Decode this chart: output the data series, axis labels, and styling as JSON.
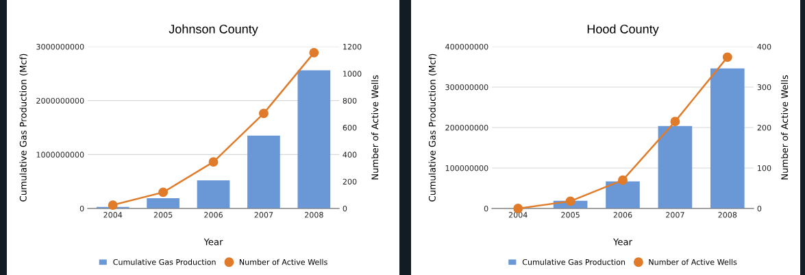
{
  "chart_data": [
    {
      "type": "bar",
      "title": "Johnson County",
      "xlabel": "Year",
      "ylabel": "Cumulative Gas Production (Mcf)",
      "y2label": "Number of Active Wells",
      "categories": [
        "2004",
        "2005",
        "2006",
        "2007",
        "2008"
      ],
      "series": [
        {
          "name": "Cumulative Gas Production",
          "color": "#6a98d6",
          "values": [
            30000000,
            190000000,
            520000000,
            1350000000,
            2560000000
          ]
        },
        {
          "name": "Number of Active Wells",
          "type": "line",
          "axis": "y2",
          "color": "#e07b2a",
          "marker": "circle",
          "values": [
            25,
            120,
            345,
            705,
            1155
          ]
        }
      ],
      "ylim": [
        0,
        3000000000
      ],
      "yticks": [
        0,
        1000000000,
        2000000000,
        3000000000
      ],
      "y2lim": [
        0,
        1200
      ],
      "y2ticks": [
        0,
        200,
        400,
        600,
        800,
        1000,
        1200
      ],
      "grid": "y",
      "legend": "bottom"
    },
    {
      "type": "bar",
      "title": "Hood County",
      "xlabel": "Year",
      "ylabel": "Cumulative Gas Production (Mcf)",
      "y2label": "Number of Active Wells",
      "categories": [
        "2004",
        "2005",
        "2006",
        "2007",
        "2008"
      ],
      "series": [
        {
          "name": "Cumulative Gas Production",
          "color": "#6a98d6",
          "values": [
            0,
            19000000,
            67000000,
            204000000,
            346000000
          ]
        },
        {
          "name": "Number of Active Wells",
          "type": "line",
          "axis": "y2",
          "color": "#e07b2a",
          "marker": "circle",
          "values": [
            0,
            18,
            70,
            215,
            374
          ]
        }
      ],
      "ylim": [
        0,
        400000000
      ],
      "yticks": [
        0,
        100000000,
        200000000,
        300000000,
        400000000
      ],
      "y2lim": [
        0,
        400
      ],
      "y2ticks": [
        0,
        100,
        200,
        300,
        400
      ],
      "grid": "y",
      "legend": "bottom"
    }
  ]
}
